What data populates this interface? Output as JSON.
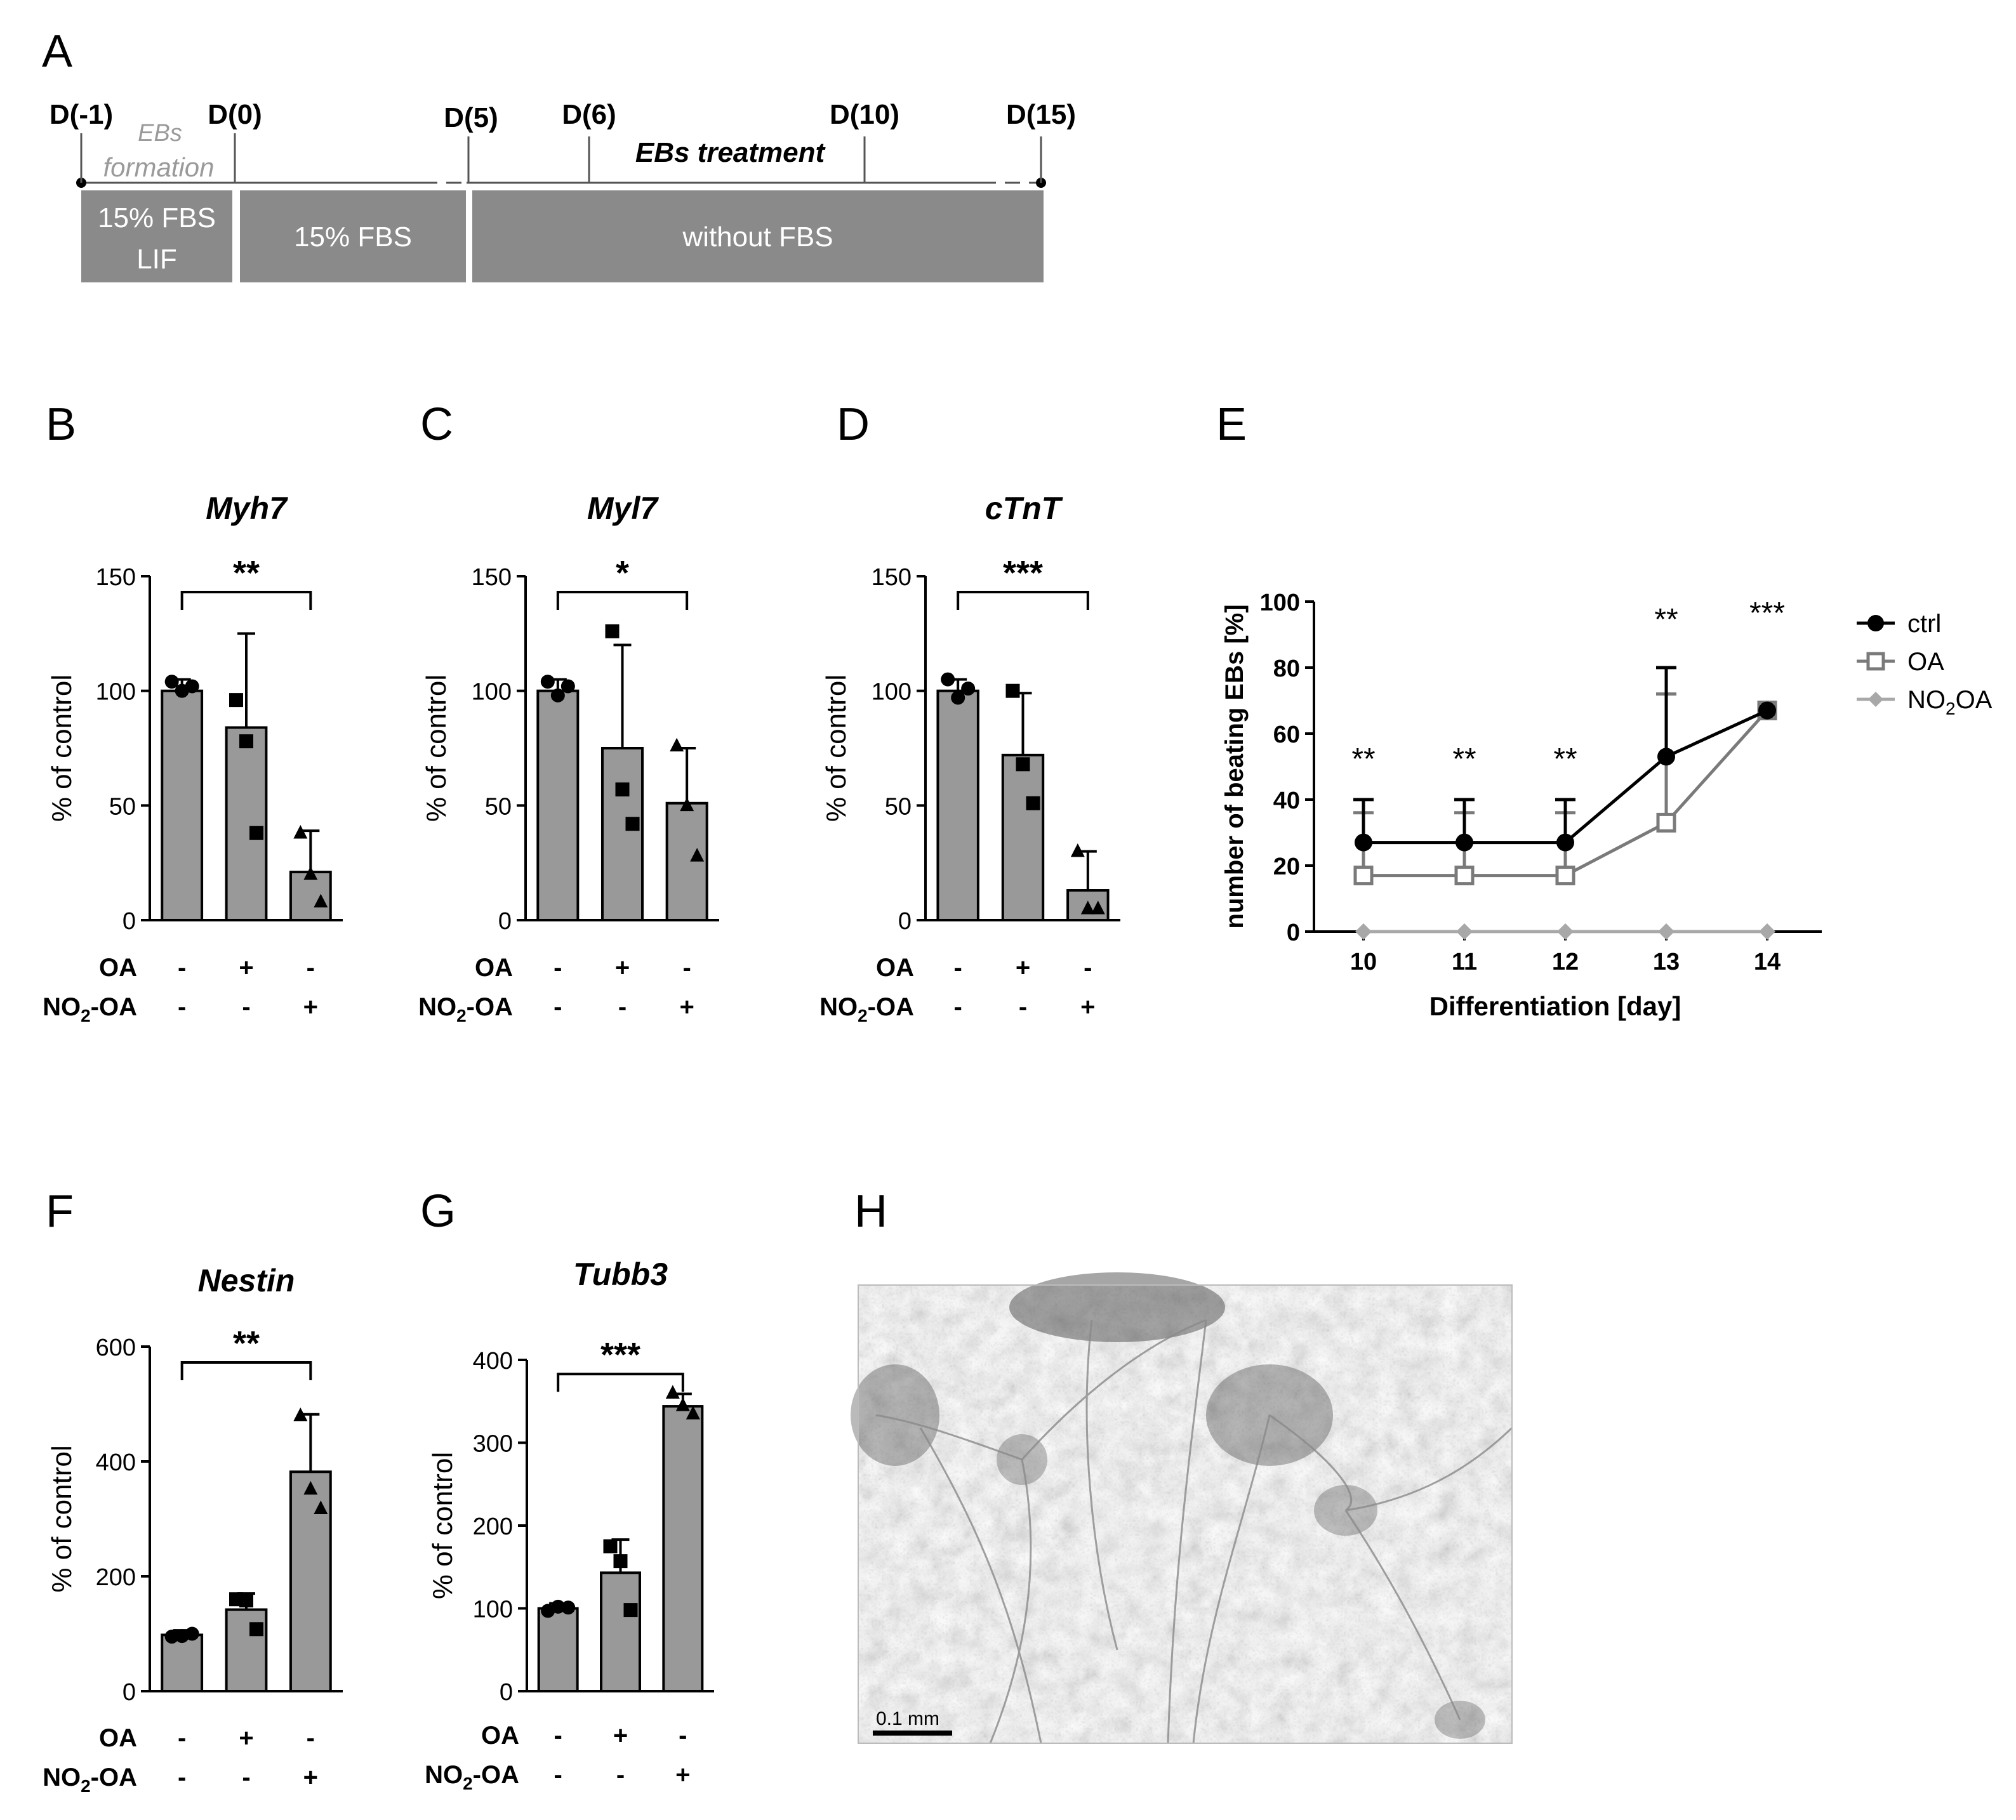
{
  "panel_labels": {
    "A": "A",
    "B": "B",
    "C": "C",
    "D": "D",
    "E": "E",
    "F": "F",
    "G": "G",
    "H": "H"
  },
  "timeline": {
    "days": [
      "D(-1)",
      "D(0)",
      "D(5)",
      "D(6)",
      "D(10)",
      "D(15)"
    ],
    "phase_eb_formation": [
      "EBs",
      "formation"
    ],
    "phase_treatment": "EBs treatment",
    "media": [
      {
        "lines": [
          "15% FBS",
          "LIF"
        ]
      },
      {
        "lines": [
          "15% FBS"
        ]
      },
      {
        "lines": [
          "without FBS"
        ]
      }
    ],
    "colors": {
      "box": "#8a8a8a",
      "box_text": "#ffffff",
      "muted_text": "#9a9a9a"
    }
  },
  "treatment_rows": {
    "oa_label": "OA",
    "no2_prefix": "NO",
    "no2_sub": "2",
    "no2_suffix": "-OA",
    "oa_signs": [
      "-",
      "+",
      "-"
    ],
    "no2_signs": [
      "-",
      "-",
      "+"
    ]
  },
  "chart_data": [
    {
      "panel": "B",
      "type": "bar",
      "title": "Myh7",
      "ylabel": "% of control",
      "ylim": [
        0,
        150
      ],
      "yticks": [
        0,
        50,
        100,
        150
      ],
      "categories": [
        "ctrl",
        "OA",
        "NO2-OA"
      ],
      "values": [
        100,
        84,
        21
      ],
      "sd": [
        5,
        41,
        18
      ],
      "points": [
        [
          104,
          100,
          102
        ],
        [
          96,
          78,
          38
        ],
        [
          38,
          20,
          8
        ]
      ],
      "markers": [
        "circle",
        "square",
        "triangle"
      ],
      "significance": {
        "from": 0,
        "to": 2,
        "label": "**"
      }
    },
    {
      "panel": "C",
      "type": "bar",
      "title": "Myl7",
      "ylabel": "% of control",
      "ylim": [
        0,
        150
      ],
      "yticks": [
        0,
        50,
        100,
        150
      ],
      "categories": [
        "ctrl",
        "OA",
        "NO2-OA"
      ],
      "values": [
        100,
        75,
        51
      ],
      "sd": [
        5,
        45,
        24
      ],
      "points": [
        [
          104,
          98,
          102
        ],
        [
          126,
          57,
          42
        ],
        [
          76,
          50,
          28
        ]
      ],
      "markers": [
        "circle",
        "square",
        "triangle"
      ],
      "significance": {
        "from": 0,
        "to": 2,
        "label": "*"
      }
    },
    {
      "panel": "D",
      "type": "bar",
      "title": "cTnT",
      "ylabel": "% of control",
      "ylim": [
        0,
        150
      ],
      "yticks": [
        0,
        50,
        100,
        150
      ],
      "categories": [
        "ctrl",
        "OA",
        "NO2-OA"
      ],
      "values": [
        100,
        72,
        13
      ],
      "sd": [
        5,
        27,
        17
      ],
      "points": [
        [
          105,
          97,
          101
        ],
        [
          100,
          68,
          51
        ],
        [
          30,
          5,
          5
        ]
      ],
      "markers": [
        "circle",
        "square",
        "triangle"
      ],
      "significance": {
        "from": 0,
        "to": 2,
        "label": "***"
      }
    },
    {
      "panel": "E",
      "type": "line",
      "xlabel": "Differentiation [day]",
      "ylabel": "number of beating EBs [%]",
      "x": [
        10,
        11,
        12,
        13,
        14
      ],
      "ylim": [
        0,
        100
      ],
      "yticks": [
        0,
        20,
        40,
        60,
        80,
        100
      ],
      "series": [
        {
          "name": "ctrl",
          "values": [
            27,
            27,
            27,
            53,
            67
          ],
          "err": [
            13,
            13,
            13,
            27,
            0
          ],
          "marker": "circle",
          "color": "#000000"
        },
        {
          "name": "OA",
          "values": [
            17,
            17,
            17,
            33,
            67
          ],
          "err": [
            19,
            19,
            19,
            39,
            0
          ],
          "marker": "square-open",
          "color": "#7a7a7a"
        },
        {
          "name_prefix": "NO",
          "name_sub": "2",
          "name_suffix": "OA",
          "values": [
            0,
            0,
            0,
            0,
            0
          ],
          "err": [
            0,
            0,
            0,
            0,
            0
          ],
          "marker": "diamond",
          "color": "#a8a8a8"
        }
      ],
      "annotations": [
        "**",
        "**",
        "**",
        "**",
        "***"
      ],
      "legend_position": "top-right"
    },
    {
      "panel": "F",
      "type": "bar",
      "title": "Nestin",
      "ylabel": "% of control",
      "ylim": [
        0,
        600
      ],
      "yticks": [
        0,
        200,
        400,
        600
      ],
      "categories": [
        "ctrl",
        "OA",
        "NO2-OA"
      ],
      "values": [
        98,
        142,
        382
      ],
      "sd": [
        8,
        28,
        100
      ],
      "points": [
        [
          95,
          96,
          100
        ],
        [
          160,
          158,
          108
        ],
        [
          480,
          352,
          318
        ]
      ],
      "markers": [
        "circle",
        "square",
        "triangle"
      ],
      "significance": {
        "from": 0,
        "to": 2,
        "label": "**"
      }
    },
    {
      "panel": "G",
      "type": "bar",
      "title": "Tubb3",
      "ylabel": "% of control",
      "ylim": [
        0,
        400
      ],
      "yticks": [
        0,
        100,
        200,
        300,
        400
      ],
      "categories": [
        "ctrl",
        "OA",
        "NO2-OA"
      ],
      "values": [
        100,
        143,
        344
      ],
      "sd": [
        6,
        40,
        15
      ],
      "points": [
        [
          97,
          102,
          101
        ],
        [
          175,
          157,
          98
        ],
        [
          360,
          345,
          335
        ]
      ],
      "markers": [
        "circle",
        "square",
        "triangle"
      ],
      "significance": {
        "from": 0,
        "to": 2,
        "label": "***"
      }
    }
  ],
  "micrograph": {
    "scalebar_label": "0.1 mm"
  }
}
